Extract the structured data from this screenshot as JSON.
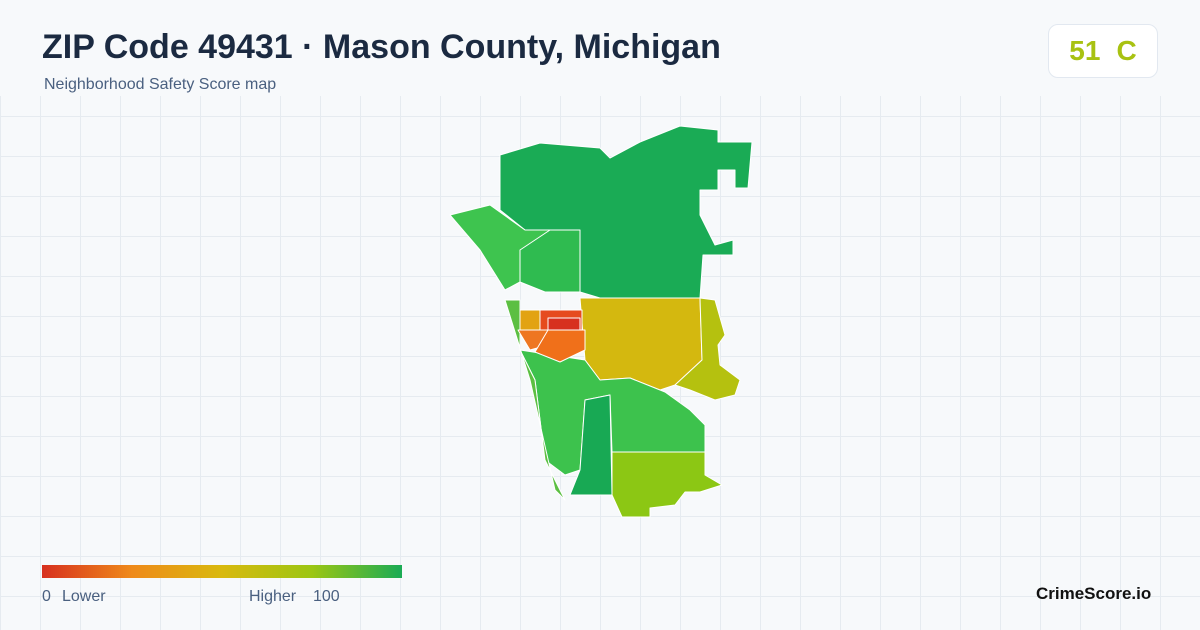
{
  "header": {
    "title": "ZIP Code 49431 · Mason County, Michigan",
    "subtitle": "Neighborhood Safety Score map"
  },
  "score": {
    "value": "51",
    "grade": "C"
  },
  "legend": {
    "min": "0",
    "min_label": "Lower",
    "max_label": "Higher",
    "max": "100"
  },
  "brand": "CrimeScore.io"
}
